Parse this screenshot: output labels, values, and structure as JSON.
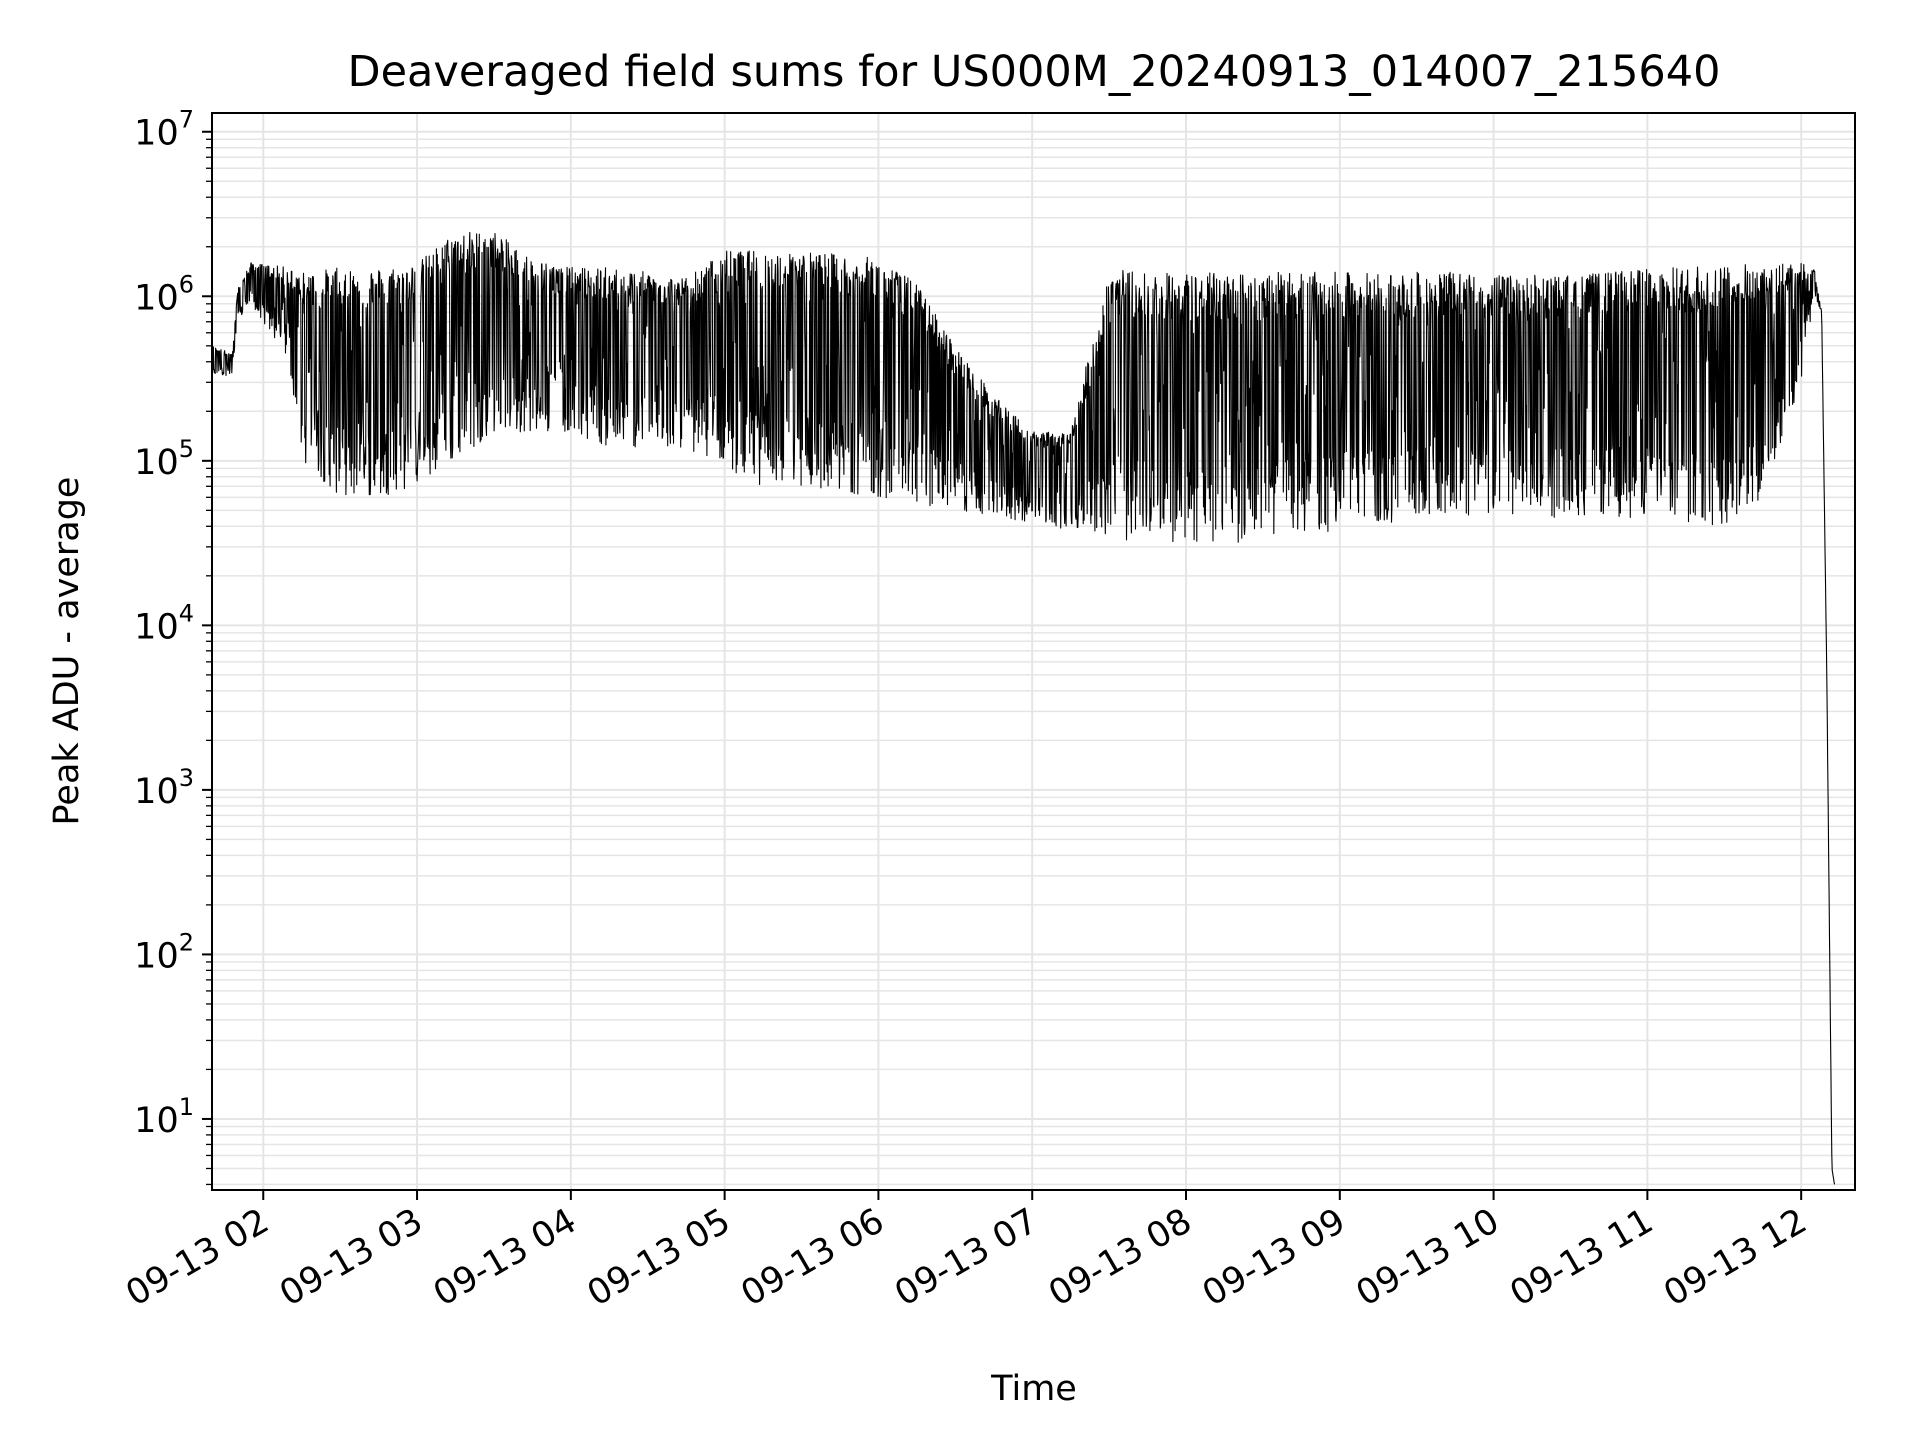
{
  "chart_data": {
    "type": "line",
    "title": "Deaveraged field sums for US000M_20240913_014007_215640",
    "xlabel": "Time",
    "ylabel": "Peak ADU - average",
    "yscale": "log",
    "ylim": [
      3.7,
      13000000
    ],
    "xlim": [
      "2024-09-13T01:40:00",
      "2024-09-13T12:21:00"
    ],
    "grid": true,
    "line_color": "#000000",
    "grid_color": "#e5e5e5",
    "x_ticks": [
      {
        "t": "2024-09-13T02:00:00",
        "label": "09-13 02"
      },
      {
        "t": "2024-09-13T03:00:00",
        "label": "09-13 03"
      },
      {
        "t": "2024-09-13T04:00:00",
        "label": "09-13 04"
      },
      {
        "t": "2024-09-13T05:00:00",
        "label": "09-13 05"
      },
      {
        "t": "2024-09-13T06:00:00",
        "label": "09-13 06"
      },
      {
        "t": "2024-09-13T07:00:00",
        "label": "09-13 07"
      },
      {
        "t": "2024-09-13T08:00:00",
        "label": "09-13 08"
      },
      {
        "t": "2024-09-13T09:00:00",
        "label": "09-13 09"
      },
      {
        "t": "2024-09-13T10:00:00",
        "label": "09-13 10"
      },
      {
        "t": "2024-09-13T11:00:00",
        "label": "09-13 11"
      },
      {
        "t": "2024-09-13T12:00:00",
        "label": "09-13 12"
      }
    ],
    "y_ticks": [
      {
        "value": 10,
        "base": "10",
        "exp": "1"
      },
      {
        "value": 100,
        "base": "10",
        "exp": "2"
      },
      {
        "value": 1000,
        "base": "10",
        "exp": "3"
      },
      {
        "value": 10000,
        "base": "10",
        "exp": "4"
      },
      {
        "value": 100000,
        "base": "10",
        "exp": "5"
      },
      {
        "value": 1000000,
        "base": "10",
        "exp": "6"
      },
      {
        "value": 10000000,
        "base": "10",
        "exp": "7"
      }
    ],
    "series": [
      {
        "x": [
          "2024-09-13T01:40:00",
          "2024-09-13T01:48:00",
          "2024-09-13T01:50:00",
          "2024-09-13T01:55:00",
          "2024-09-13T02:10:00",
          "2024-09-13T02:15:00",
          "2024-09-13T02:30:00",
          "2024-09-13T02:45:00",
          "2024-09-13T03:00:00",
          "2024-09-13T03:15:00",
          "2024-09-13T03:30:00",
          "2024-09-13T03:45:00",
          "2024-09-13T04:00:00",
          "2024-09-13T04:15:00",
          "2024-09-13T04:30:00",
          "2024-09-13T04:45:00",
          "2024-09-13T05:00:00",
          "2024-09-13T05:15:00",
          "2024-09-13T05:30:00",
          "2024-09-13T05:45:00",
          "2024-09-13T06:00:00",
          "2024-09-13T06:15:00",
          "2024-09-13T06:30:00",
          "2024-09-13T06:45:00",
          "2024-09-13T07:00:00",
          "2024-09-13T07:15:00",
          "2024-09-13T07:30:00",
          "2024-09-13T07:45:00",
          "2024-09-13T08:00:00",
          "2024-09-13T08:15:00",
          "2024-09-13T08:30:00",
          "2024-09-13T08:45:00",
          "2024-09-13T09:00:00",
          "2024-09-13T09:15:00",
          "2024-09-13T09:30:00",
          "2024-09-13T09:45:00",
          "2024-09-13T10:00:00",
          "2024-09-13T10:15:00",
          "2024-09-13T10:30:00",
          "2024-09-13T10:45:00",
          "2024-09-13T11:00:00",
          "2024-09-13T11:15:00",
          "2024-09-13T11:30:00",
          "2024-09-13T11:45:00",
          "2024-09-13T12:00:00",
          "2024-09-13T12:05:00",
          "2024-09-13T12:08:00",
          "2024-09-13T12:10:00",
          "2024-09-13T12:12:00",
          "2024-09-13T12:13:00"
        ],
        "high": [
          500000,
          450000,
          1100000,
          1600000,
          1500000,
          1400000,
          1500000,
          1500000,
          1600000,
          2500000,
          2500000,
          1700000,
          1500000,
          1500000,
          1400000,
          1300000,
          1900000,
          1900000,
          1900000,
          1800000,
          1700000,
          1200000,
          500000,
          250000,
          150000,
          150000,
          1500000,
          1400000,
          1400000,
          1400000,
          1400000,
          1400000,
          1400000,
          1400000,
          1400000,
          1400000,
          1350000,
          1350000,
          1350000,
          1400000,
          1500000,
          1500000,
          1550000,
          1600000,
          1600000,
          1500000,
          800000,
          5000,
          5,
          4
        ],
        "low": [
          330000,
          330000,
          700000,
          900000,
          400000,
          100000,
          60000,
          60000,
          70000,
          100000,
          150000,
          150000,
          150000,
          120000,
          120000,
          120000,
          90000,
          70000,
          70000,
          65000,
          60000,
          55000,
          50000,
          45000,
          42000,
          38000,
          33000,
          32000,
          32000,
          31000,
          32000,
          35000,
          38000,
          40000,
          42000,
          45000,
          45000,
          45000,
          45000,
          45000,
          45000,
          42000,
          40000,
          60000,
          300000,
          1000000,
          800000,
          5000,
          5,
          4
        ]
      }
    ]
  }
}
